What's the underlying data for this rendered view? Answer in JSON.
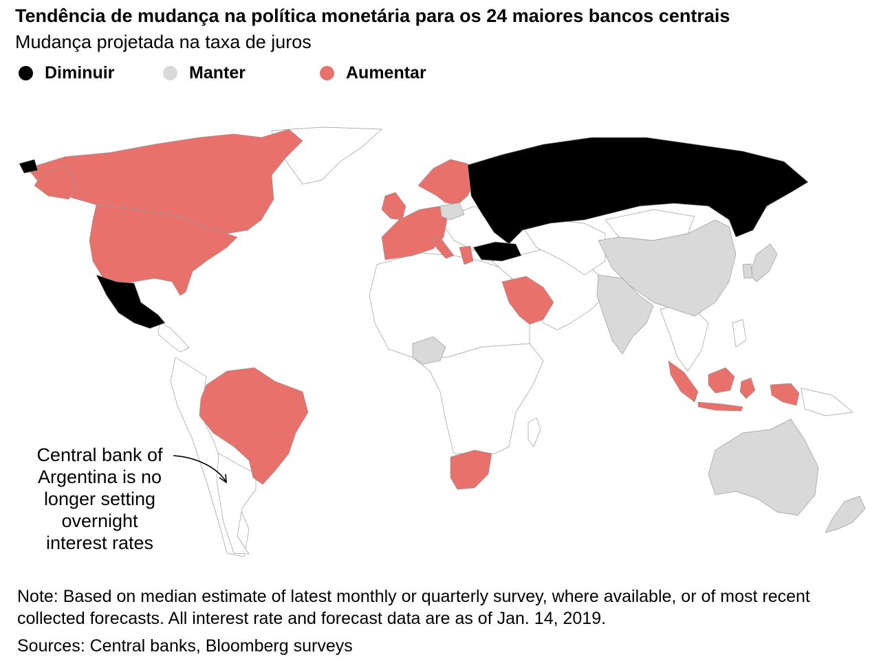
{
  "title": "Tendência de mudança na política monetária para os 24 maiores bancos centrais",
  "subtitle": "Mudança projetada na taxa de juros",
  "legend": [
    {
      "label": "Diminuir",
      "color": "#000000"
    },
    {
      "label": "Manter",
      "color": "#d9d9d9"
    },
    {
      "label": "Aumentar",
      "color": "#e8716b"
    }
  ],
  "colors": {
    "diminuir": "#000000",
    "manter": "#d9d9d9",
    "aumentar": "#e8716b",
    "other": "#ffffff"
  },
  "map": {
    "regions": [
      {
        "name": "Canada",
        "category": "aumentar"
      },
      {
        "name": "United States",
        "category": "aumentar"
      },
      {
        "name": "Mexico",
        "category": "diminuir"
      },
      {
        "name": "Brazil",
        "category": "aumentar"
      },
      {
        "name": "Norway",
        "category": "aumentar"
      },
      {
        "name": "Sweden",
        "category": "aumentar"
      },
      {
        "name": "United Kingdom",
        "category": "aumentar"
      },
      {
        "name": "Euro area",
        "category": "aumentar"
      },
      {
        "name": "Switzerland",
        "category": "aumentar"
      },
      {
        "name": "Poland",
        "category": "manter"
      },
      {
        "name": "Czech Republic",
        "category": "aumentar"
      },
      {
        "name": "Russia",
        "category": "diminuir"
      },
      {
        "name": "Turkey",
        "category": "diminuir"
      },
      {
        "name": "Saudi Arabia",
        "category": "aumentar"
      },
      {
        "name": "Nigeria",
        "category": "manter"
      },
      {
        "name": "South Africa",
        "category": "aumentar"
      },
      {
        "name": "India",
        "category": "manter"
      },
      {
        "name": "China",
        "category": "manter"
      },
      {
        "name": "South Korea",
        "category": "manter"
      },
      {
        "name": "Japan",
        "category": "manter"
      },
      {
        "name": "Indonesia",
        "category": "aumentar"
      },
      {
        "name": "Australia",
        "category": "manter"
      },
      {
        "name": "New Zealand",
        "category": "manter"
      }
    ]
  },
  "annotation": {
    "lines": [
      "Central bank of",
      "Argentina is no",
      "longer setting",
      "overnight",
      "interest rates"
    ]
  },
  "note": "Note: Based on median estimate of latest monthly or quarterly survey, where available, or of most recent collected forecasts. All interest rate and forecast data are as of Jan. 14, 2019.",
  "sources": "Sources: Central banks, Bloomberg surveys"
}
